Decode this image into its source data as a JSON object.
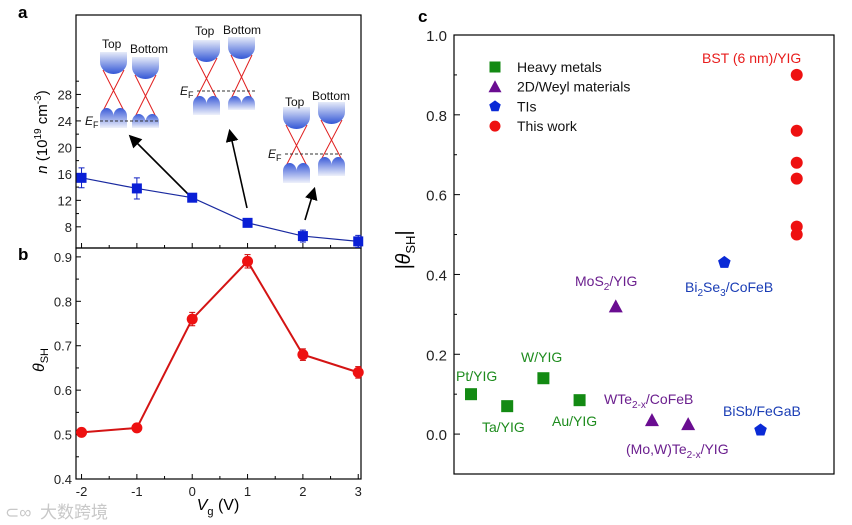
{
  "panels": {
    "a": "a",
    "b": "b",
    "c": "c"
  },
  "watermark": "大数跨境",
  "insets": {
    "top": "Top",
    "bottom": "Bottom",
    "ef_main": "E",
    "ef_sub": "F"
  },
  "chart_data": [
    {
      "id": "a",
      "type": "line",
      "title": "",
      "xlabel": "",
      "ylabel_parts": [
        "n",
        " (10",
        "19",
        " cm",
        "-3",
        ")"
      ],
      "x": [
        -2,
        -1,
        0,
        1,
        2,
        3
      ],
      "values": [
        15.4,
        13.8,
        12.4,
        8.6,
        6.6,
        5.8
      ],
      "errors": [
        1.5,
        1.6,
        0.3,
        0.3,
        0.9,
        0.9
      ],
      "xlim": [
        -2.1,
        3.05
      ],
      "ylim": [
        4.8,
        40
      ],
      "yticks": [
        8,
        12,
        16,
        20,
        24,
        28
      ],
      "color": "#0a1fd6",
      "line_color": "#1a2aa0",
      "marker": "square"
    },
    {
      "id": "b",
      "type": "line",
      "title": "",
      "xlabel_parts": [
        "V",
        "g",
        " (V)"
      ],
      "ylabel_parts": [
        "θ",
        "SH"
      ],
      "x": [
        -2,
        -1,
        0,
        1,
        2,
        3
      ],
      "values": [
        0.505,
        0.515,
        0.76,
        0.89,
        0.68,
        0.64
      ],
      "errors": [
        0.008,
        0.008,
        0.015,
        0.015,
        0.013,
        0.013
      ],
      "xlim": [
        -2.1,
        3.05
      ],
      "ylim": [
        0.4,
        0.92
      ],
      "xticks": [
        "-2",
        "-1",
        "0",
        "1",
        "2",
        "3"
      ],
      "yticks": [
        "0.4",
        "0.5",
        "0.6",
        "0.7",
        "0.8",
        "0.9"
      ],
      "color": "#ee1111",
      "line_color": "#d41414",
      "marker": "circle"
    },
    {
      "id": "c",
      "type": "scatter",
      "title": "",
      "xlabel": "",
      "ylabel_parts": [
        "|θ",
        "SH",
        "|"
      ],
      "ylim": [
        -0.1,
        1.0
      ],
      "xlim": [
        0.53,
        11.03
      ],
      "yticks": [
        "0.0",
        "0.2",
        "0.4",
        "0.6",
        "0.8",
        "1.0"
      ],
      "legend_position": "top-left",
      "series": [
        {
          "name": "Heavy metals",
          "marker": "square",
          "color": "#138a13",
          "text_color": "#1e8c1e",
          "points": [
            {
              "x": 1,
              "y": 0.1,
              "label": [
                "Pt/YIG"
              ]
            },
            {
              "x": 2,
              "y": 0.07,
              "label": [
                "Ta/YIG"
              ]
            },
            {
              "x": 3,
              "y": 0.14,
              "label": [
                "W/YIG"
              ]
            },
            {
              "x": 4,
              "y": 0.085,
              "label": [
                "Au/YIG"
              ]
            }
          ]
        },
        {
          "name": "2D/Weyl materials",
          "marker": "triangle",
          "color": "#6a0d91",
          "text_color": "#6b1f8e",
          "points": [
            {
              "x": 5,
              "y": 0.32,
              "label": [
                "MoS",
                "2",
                "/YIG"
              ]
            },
            {
              "x": 6,
              "y": 0.035,
              "label": [
                "WTe",
                "2-x",
                "/CoFeB"
              ]
            },
            {
              "x": 7,
              "y": 0.025,
              "label": [
                "(Mo,W)Te",
                "2-x",
                "/YIG"
              ]
            }
          ]
        },
        {
          "name": "TIs",
          "marker": "pentagon",
          "color": "#0a2ad6",
          "text_color": "#1a3db5",
          "points": [
            {
              "x": 8,
              "y": 0.43,
              "label": [
                "Bi",
                "2",
                "Se",
                "3",
                "/CoFeB"
              ]
            },
            {
              "x": 9,
              "y": 0.01,
              "label": [
                "BiSb/FeGaB"
              ]
            }
          ]
        },
        {
          "name": "This work",
          "marker": "circle",
          "color": "#ee1111",
          "text_color": "#e81c1c",
          "points": [
            {
              "x": 10,
              "y": 0.9,
              "label": [
                "BST (6 nm)/YIG"
              ]
            },
            {
              "x": 10,
              "y": 0.76
            },
            {
              "x": 10,
              "y": 0.68
            },
            {
              "x": 10,
              "y": 0.64
            },
            {
              "x": 10,
              "y": 0.52
            },
            {
              "x": 10,
              "y": 0.5
            }
          ]
        }
      ]
    }
  ]
}
